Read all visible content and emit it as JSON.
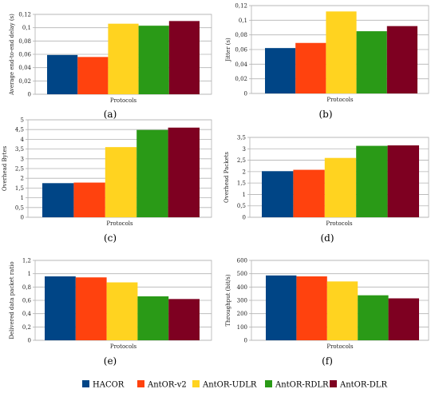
{
  "series_colors": {
    "HACOR": "#004586",
    "AntOR-v2": "#ff420e",
    "AntOR-UDLR": "#ffd320",
    "AntOR-RDLR": "#2a9a17",
    "AntOR-DLR": "#7e0021"
  },
  "legend": [
    "HACOR",
    "AntOR-v2",
    "AntOR-UDLR",
    "AntOR-RDLR",
    "AntOR-DLR"
  ],
  "chart_data": [
    {
      "type": "bar",
      "panel_label": "(a)",
      "xlabel": "Protocols",
      "ylabel": "Average end-to-end delay (s)",
      "ylim": [
        0,
        0.12
      ],
      "yticks": [
        "0",
        "0,02",
        "0,04",
        "0,06",
        "0,08",
        "0,1",
        "0,12"
      ],
      "series": [
        {
          "name": "HACOR",
          "values": [
            0.059
          ]
        },
        {
          "name": "AntOR-v2",
          "values": [
            0.056
          ]
        },
        {
          "name": "AntOR-UDLR",
          "values": [
            0.106
          ]
        },
        {
          "name": "AntOR-RDLR",
          "values": [
            0.103
          ]
        },
        {
          "name": "AntOR-DLR",
          "values": [
            0.11
          ]
        }
      ]
    },
    {
      "type": "bar",
      "panel_label": "(b)",
      "xlabel": "Protocols",
      "ylabel": "Jitter (s)",
      "ylim": [
        0,
        0.12
      ],
      "yticks": [
        "0",
        "0,02",
        "0,04",
        "0,06",
        "0,08",
        "0,1",
        "0,12"
      ],
      "series": [
        {
          "name": "HACOR",
          "values": [
            0.062
          ]
        },
        {
          "name": "AntOR-v2",
          "values": [
            0.069
          ]
        },
        {
          "name": "AntOR-UDLR",
          "values": [
            0.112
          ]
        },
        {
          "name": "AntOR-RDLR",
          "values": [
            0.085
          ]
        },
        {
          "name": "AntOR-DLR",
          "values": [
            0.092
          ]
        }
      ]
    },
    {
      "type": "bar",
      "panel_label": "(c)",
      "xlabel": "Protocols",
      "ylabel": "Overhead Bytes",
      "ylim": [
        0,
        5
      ],
      "yticks": [
        "0",
        "0,5",
        "1",
        "1,5",
        "2",
        "2,5",
        "3",
        "3,5",
        "4",
        "4,5",
        "5"
      ],
      "series": [
        {
          "name": "HACOR",
          "values": [
            1.75
          ]
        },
        {
          "name": "AntOR-v2",
          "values": [
            1.78
          ]
        },
        {
          "name": "AntOR-UDLR",
          "values": [
            3.6
          ]
        },
        {
          "name": "AntOR-RDLR",
          "values": [
            4.48
          ]
        },
        {
          "name": "AntOR-DLR",
          "values": [
            4.6
          ]
        }
      ]
    },
    {
      "type": "bar",
      "panel_label": "(d)",
      "xlabel": "Protocols",
      "ylabel": "Overhead Packets",
      "ylim": [
        0,
        3.5
      ],
      "yticks": [
        "0",
        "0,5",
        "1",
        "1,5",
        "2",
        "2,5",
        "3",
        "3,5"
      ],
      "series": [
        {
          "name": "HACOR",
          "values": [
            2.02
          ]
        },
        {
          "name": "AntOR-v2",
          "values": [
            2.08
          ]
        },
        {
          "name": "AntOR-UDLR",
          "values": [
            2.6
          ]
        },
        {
          "name": "AntOR-RDLR",
          "values": [
            3.13
          ]
        },
        {
          "name": "AntOR-DLR",
          "values": [
            3.15
          ]
        }
      ]
    },
    {
      "type": "bar",
      "panel_label": "(e)",
      "xlabel": "Protocols",
      "ylabel": "Delivered data packet ratio",
      "ylim": [
        0,
        1.2
      ],
      "yticks": [
        "0",
        "0,2",
        "0,4",
        "0,6",
        "0,8",
        "1",
        "1,2"
      ],
      "series": [
        {
          "name": "HACOR",
          "values": [
            0.96
          ]
        },
        {
          "name": "AntOR-v2",
          "values": [
            0.945
          ]
        },
        {
          "name": "AntOR-UDLR",
          "values": [
            0.87
          ]
        },
        {
          "name": "AntOR-RDLR",
          "values": [
            0.66
          ]
        },
        {
          "name": "AntOR-DLR",
          "values": [
            0.62
          ]
        }
      ]
    },
    {
      "type": "bar",
      "panel_label": "(f)",
      "xlabel": "Protocols",
      "ylabel": "Throughput (bit/s)",
      "ylim": [
        0,
        600
      ],
      "yticks": [
        "0",
        "100",
        "200",
        "300",
        "400",
        "500",
        "600"
      ],
      "series": [
        {
          "name": "HACOR",
          "values": [
            487
          ]
        },
        {
          "name": "AntOR-v2",
          "values": [
            480
          ]
        },
        {
          "name": "AntOR-UDLR",
          "values": [
            442
          ]
        },
        {
          "name": "AntOR-RDLR",
          "values": [
            338
          ]
        },
        {
          "name": "AntOR-DLR",
          "values": [
            315
          ]
        }
      ]
    }
  ]
}
